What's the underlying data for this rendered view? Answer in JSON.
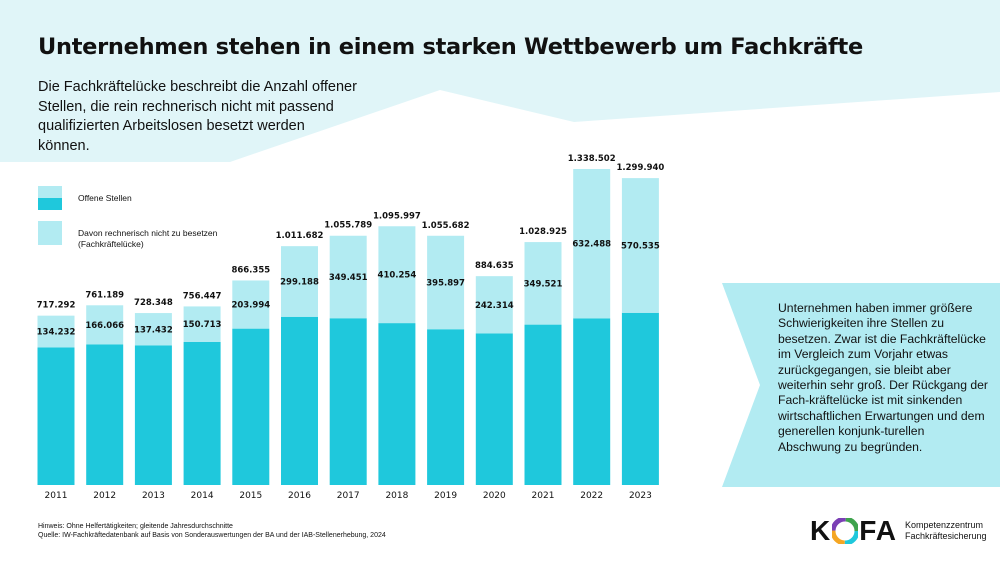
{
  "title": "Unternehmen stehen in einem starken Wettbewerb um Fachkräfte",
  "intro": "Die Fachkräftelücke beschreibt die Anzahl offener Stellen, die rein rechnerisch nicht mit passend qualifizierten Arbeitslosen besetzt werden können.",
  "legend": {
    "offene": "Offene Stellen",
    "luecke": "Davon rechnerisch nicht zu besetzen (Fachkräftelücke)"
  },
  "colors": {
    "bar_dark": "#1fc8dc",
    "bar_light": "#b2ebf2",
    "bg_light": "#e0f5f8",
    "callout": "#b2ebf2"
  },
  "chart_data": {
    "type": "bar",
    "stacked": true,
    "categories": [
      "2011",
      "2012",
      "2013",
      "2014",
      "2015",
      "2016",
      "2017",
      "2018",
      "2019",
      "2020",
      "2021",
      "2022",
      "2023"
    ],
    "totals": [
      717292,
      761189,
      728348,
      756447,
      866355,
      1011682,
      1055789,
      1095997,
      1055682,
      884635,
      1028925,
      1338502,
      1299940
    ],
    "total_labels": [
      "717.292",
      "761.189",
      "728.348",
      "756.447",
      "866.355",
      "1.011.682",
      "1.055.789",
      "1.095.997",
      "1.055.682",
      "884.635",
      "1.028.925",
      "1.338.502",
      "1.299.940"
    ],
    "gap": [
      134232,
      166066,
      137432,
      150713,
      203994,
      299188,
      349451,
      410254,
      395897,
      242314,
      349521,
      632488,
      570535
    ],
    "gap_labels": [
      "134.232",
      "166.066",
      "137.432",
      "150.713",
      "203.994",
      "299.188",
      "349.451",
      "410.254",
      "395.897",
      "242.314",
      "349.521",
      "632.488",
      "570.535"
    ],
    "series": [
      {
        "name": "Offene Stellen",
        "values_ref": "totals"
      },
      {
        "name": "Davon rechnerisch nicht zu besetzen (Fachkräftelücke)",
        "values_ref": "gap"
      }
    ],
    "ylim": [
      0,
      1338502
    ],
    "grid": false,
    "legend_position": "top-left"
  },
  "callout": "Unternehmen haben immer größere Schwierigkeiten ihre Stellen zu besetzen. Zwar ist die Fachkräftelücke im Vergleich zum Vorjahr etwas zurückgegangen, sie bleibt aber weiterhin sehr groß. Der Rückgang der Fach-kräftelücke ist mit sinkenden wirtschaftlichen Erwartungen und dem generellen konjunk-turellen Abschwung zu begründen.",
  "footer": {
    "note": "Hinweis: Ohne Helfertätigkeiten; gleitende Jahresdurchschnitte",
    "source": "Quelle: IW-Fachkräftedatenbank auf Basis von Sonderauswertungen der BA und der IAB-Stellenerhebung, 2024"
  },
  "logo": {
    "word": "KOFA",
    "line1": "Kompetenzzentrum",
    "line2": "Fachkräftesicherung"
  }
}
